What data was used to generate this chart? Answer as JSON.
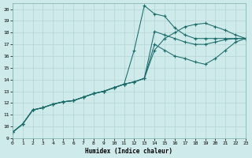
{
  "xlabel": "Humidex (Indice chaleur)",
  "xlim": [
    0,
    23
  ],
  "ylim": [
    9,
    20.5
  ],
  "xticks": [
    0,
    1,
    2,
    3,
    4,
    5,
    6,
    7,
    8,
    9,
    10,
    11,
    12,
    13,
    14,
    15,
    16,
    17,
    18,
    19,
    20,
    21,
    22,
    23
  ],
  "yticks": [
    9,
    10,
    11,
    12,
    13,
    14,
    15,
    16,
    17,
    18,
    19,
    20
  ],
  "bg_color": "#ceeaea",
  "line_color": "#1b6b6b",
  "grid_color": "#b8d8d8",
  "series": [
    {
      "x": [
        0,
        1,
        2,
        3,
        4,
        5,
        6,
        7,
        8,
        9,
        10,
        11,
        12,
        13,
        14,
        15,
        16,
        17,
        18,
        19,
        20,
        21,
        22,
        23
      ],
      "y": [
        9.5,
        10.2,
        11.4,
        11.6,
        11.9,
        12.1,
        12.2,
        12.5,
        12.8,
        13.0,
        13.3,
        13.6,
        16.5,
        20.3,
        19.6,
        19.4,
        18.4,
        17.8,
        17.5,
        17.5,
        17.5,
        17.5,
        17.5,
        17.5
      ]
    },
    {
      "x": [
        0,
        1,
        2,
        3,
        4,
        5,
        6,
        7,
        8,
        9,
        10,
        11,
        12,
        13,
        14,
        15,
        16,
        17,
        18,
        19,
        20,
        21,
        22,
        23
      ],
      "y": [
        9.5,
        10.2,
        11.4,
        11.6,
        11.9,
        12.1,
        12.2,
        12.5,
        12.8,
        13.0,
        13.3,
        13.6,
        13.8,
        14.1,
        18.1,
        17.8,
        17.5,
        17.2,
        17.0,
        17.0,
        17.2,
        17.4,
        17.5,
        17.5
      ]
    },
    {
      "x": [
        0,
        1,
        2,
        3,
        4,
        5,
        6,
        7,
        8,
        9,
        10,
        11,
        12,
        13,
        14,
        15,
        16,
        17,
        18,
        19,
        20,
        21,
        22,
        23
      ],
      "y": [
        9.5,
        10.2,
        11.4,
        11.6,
        11.9,
        12.1,
        12.2,
        12.5,
        12.8,
        13.0,
        13.3,
        13.6,
        13.8,
        14.1,
        17.0,
        16.5,
        16.0,
        15.8,
        15.5,
        15.3,
        15.8,
        16.5,
        17.2,
        17.5
      ]
    },
    {
      "x": [
        0,
        1,
        2,
        3,
        4,
        5,
        6,
        7,
        8,
        9,
        10,
        11,
        12,
        13,
        14,
        15,
        16,
        17,
        18,
        19,
        20,
        21,
        22,
        23
      ],
      "y": [
        9.5,
        10.2,
        11.4,
        11.6,
        11.9,
        12.1,
        12.2,
        12.5,
        12.8,
        13.0,
        13.3,
        13.6,
        13.8,
        14.1,
        16.5,
        17.5,
        18.0,
        18.5,
        18.7,
        18.8,
        18.5,
        18.2,
        17.8,
        17.5
      ]
    }
  ]
}
